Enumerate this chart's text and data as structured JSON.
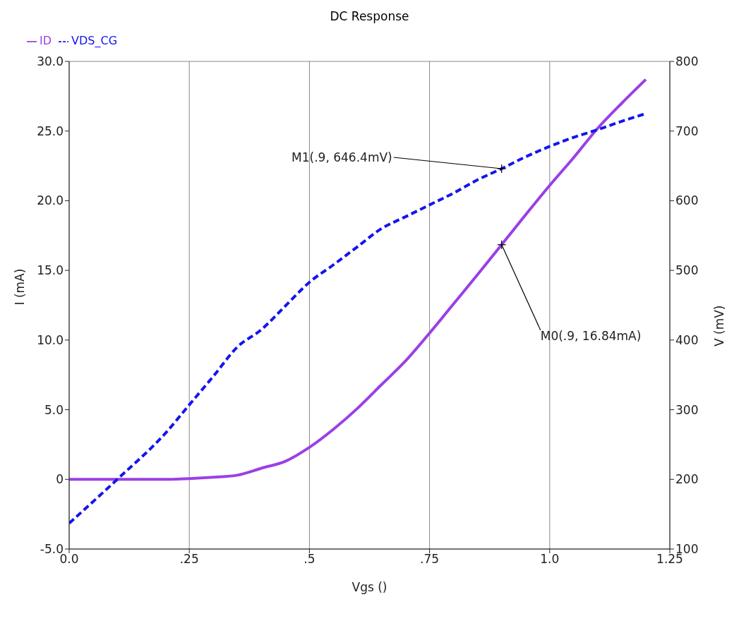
{
  "chart_data": {
    "type": "line",
    "title": "DC Response",
    "xlabel": "Vgs ()",
    "ylabel": "I (mA)",
    "y2label": "V (mV)",
    "x": [
      0,
      0.1,
      0.2,
      0.25,
      0.3,
      0.35,
      0.4,
      0.45,
      0.5,
      0.55,
      0.6,
      0.65,
      0.7,
      0.75,
      0.8,
      0.85,
      0.9,
      0.95,
      1.0,
      1.05,
      1.1,
      1.15,
      1.2
    ],
    "series": [
      {
        "name": "ID",
        "color": "#9b3fe6",
        "line_style": "solid",
        "values": [
          0,
          0,
          0,
          0.05,
          0.15,
          0.3,
          0.8,
          1.3,
          2.3,
          3.6,
          5.1,
          6.8,
          8.5,
          10.5,
          12.6,
          14.7,
          16.84,
          19,
          21.1,
          23.1,
          25.2,
          27,
          28.7
        ]
      },
      {
        "name": "VDS_CG",
        "color": "#1414f0",
        "line_style": "dashed",
        "axis": "y2",
        "values": [
          137,
          200,
          266,
          307,
          348,
          390,
          415,
          449,
          483,
          508,
          534,
          560,
          577,
          594,
          611,
          630,
          646,
          663,
          678,
          691,
          702,
          714,
          725
        ]
      }
    ],
    "xlim": [
      0,
      1.25
    ],
    "xticks": [
      {
        "value": 0,
        "label": "0.0"
      },
      {
        "value": 0.25,
        "label": ".25"
      },
      {
        "value": 0.5,
        "label": ".5"
      },
      {
        "value": 0.75,
        "label": ".75"
      },
      {
        "value": 1,
        "label": "1.0"
      },
      {
        "value": 1.25,
        "label": "1.25"
      }
    ],
    "ylim": [
      -5,
      30
    ],
    "yticks": [
      {
        "value": -5,
        "label": "-5.0"
      },
      0,
      {
        "value": 5,
        "label": "5.0"
      },
      {
        "value": 10,
        "label": "10.0"
      },
      {
        "value": 15,
        "label": "15.0"
      },
      {
        "value": 20,
        "label": "20.0"
      },
      {
        "value": 25,
        "label": "25.0"
      },
      {
        "value": 30,
        "label": "30.0"
      }
    ],
    "y2lim": [
      100,
      800
    ],
    "y2ticks": [
      100,
      200,
      300,
      400,
      500,
      600,
      700,
      800
    ],
    "annotations": [
      {
        "text": "M1(.9, 646.4mV)",
        "x": 0.9,
        "y": 22.3
      },
      {
        "text": "M0(.9, 16.84mA)",
        "x": 0.9,
        "y": 16.84
      }
    ],
    "grid": true,
    "legend": "top left",
    "marker": "none"
  }
}
